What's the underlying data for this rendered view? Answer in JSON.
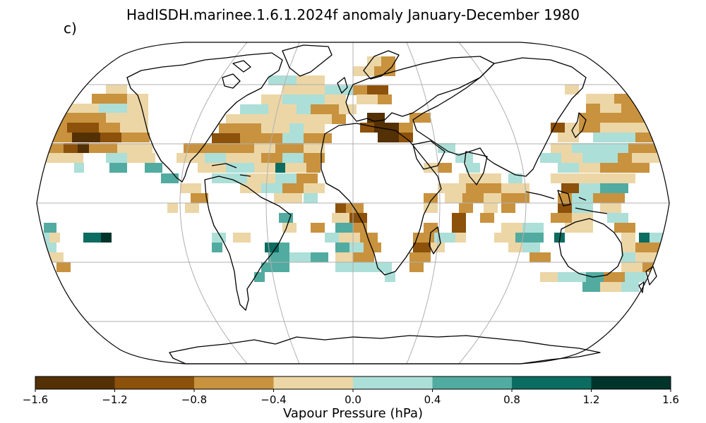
{
  "title": "HadISDH.marinee.1.6.1.2024f anomaly January-December 1980",
  "panel_label": "c)",
  "colorbar": {
    "label": "Vapour Pressure (hPa)",
    "ticks": [
      "−1.6",
      "−1.2",
      "−0.8",
      "−0.4",
      "0.0",
      "0.4",
      "0.8",
      "1.2",
      "1.6"
    ],
    "bins": [
      {
        "range": [
          -1.6,
          -1.2
        ],
        "color": "#543005"
      },
      {
        "range": [
          -1.2,
          -0.8
        ],
        "color": "#8c510a"
      },
      {
        "range": [
          -0.8,
          -0.4
        ],
        "color": "#c8923e"
      },
      {
        "range": [
          -0.4,
          0.0
        ],
        "color": "#ecd6a6"
      },
      {
        "range": [
          0.0,
          0.4
        ],
        "color": "#acdfd8"
      },
      {
        "range": [
          0.4,
          0.8
        ],
        "color": "#52aba0"
      },
      {
        "range": [
          0.8,
          1.2
        ],
        "color": "#0b6c62"
      },
      {
        "range": [
          1.2,
          1.6
        ],
        "color": "#01352c"
      }
    ]
  },
  "map": {
    "projection": "Robinson",
    "gridlines": true,
    "coastlines": true,
    "variable": "Marine vapour pressure anomaly",
    "period": "January-December 1980"
  }
}
